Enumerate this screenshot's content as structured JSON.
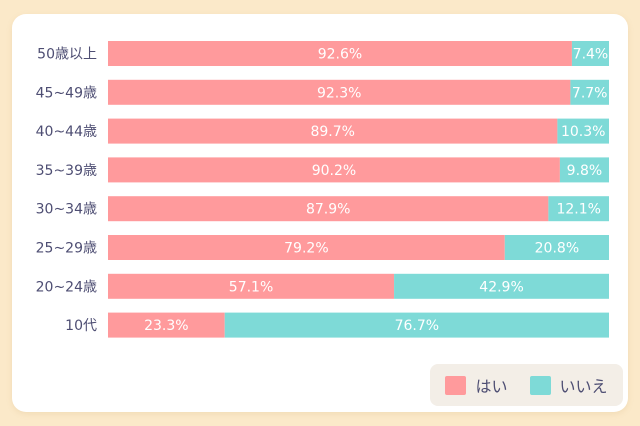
{
  "chart_data": {
    "type": "bar",
    "orientation": "horizontal",
    "stacked": true,
    "percent": true,
    "categories": [
      "50歳以上",
      "45~49歳",
      "40~44歳",
      "35~39歳",
      "30~34歳",
      "25~29歳",
      "20~24歳",
      "10代"
    ],
    "series": [
      {
        "name": "はい",
        "values": [
          92.6,
          92.3,
          89.7,
          90.2,
          87.9,
          79.2,
          57.1,
          23.3
        ],
        "color": "#ff9a9c"
      },
      {
        "name": "いいえ",
        "values": [
          7.4,
          7.7,
          10.3,
          9.8,
          12.1,
          20.8,
          42.9,
          76.7
        ],
        "color": "#7edad7"
      }
    ],
    "value_labels": [
      [
        "92.6%",
        "92.3%",
        "89.7%",
        "90.2%",
        "87.9%",
        "79.2%",
        "57.1%",
        "23.3%"
      ],
      [
        "7.4%",
        "7.7%",
        "10.3%",
        "9.8%",
        "12.1%",
        "20.8%",
        "42.9%",
        "76.7%"
      ]
    ],
    "xlim": [
      0,
      100
    ],
    "grid": false,
    "legend_position": "bottom-right"
  },
  "colors": {
    "page_background": "#fbe9c9",
    "card_background": "#ffffff",
    "legend_background": "#f3eee7",
    "category_label": "#4e4e73"
  }
}
